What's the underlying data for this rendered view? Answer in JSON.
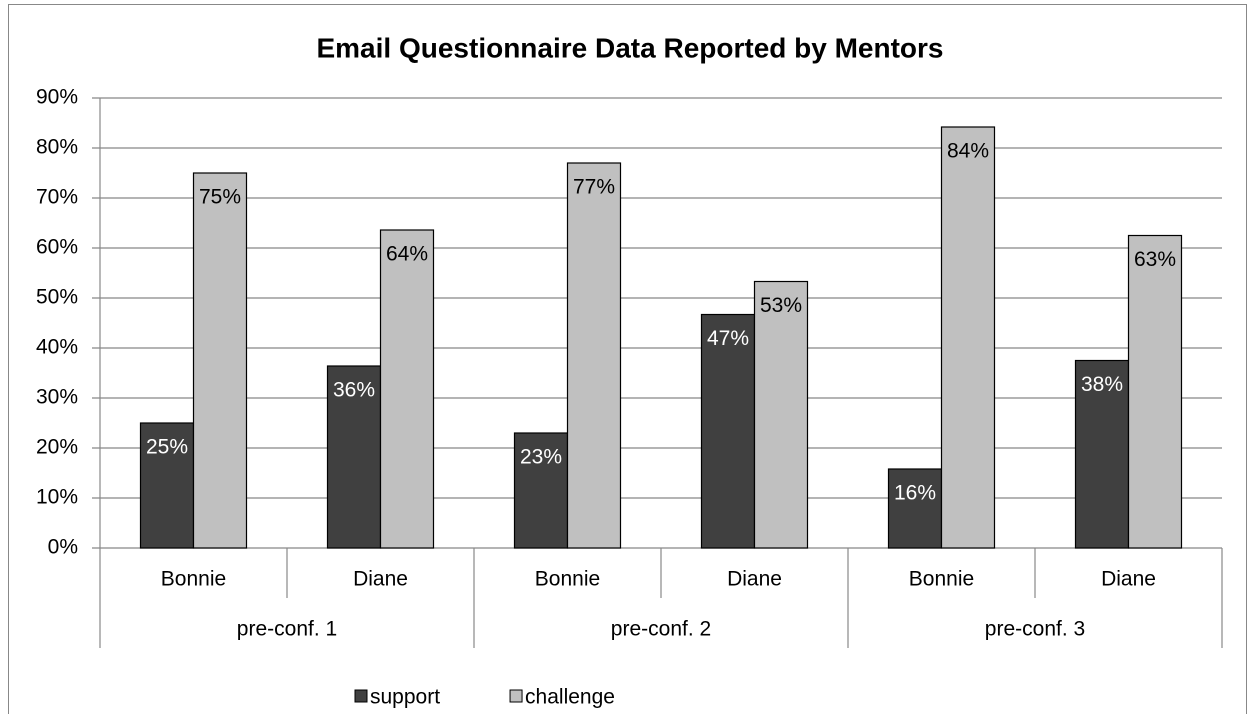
{
  "chart_data": {
    "type": "bar",
    "title": "Email Questionnaire Data Reported by Mentors",
    "categories": [
      "Bonnie",
      "Diane",
      "Bonnie",
      "Diane",
      "Bonnie",
      "Diane"
    ],
    "category_groups": [
      "pre-conf. 1",
      "pre-conf. 2",
      "pre-conf. 3"
    ],
    "series": [
      {
        "name": "support",
        "color": "#404040",
        "label_color": "#ffffff",
        "values": [
          25,
          36.4,
          23,
          46.7,
          15.8,
          37.5
        ],
        "value_labels": [
          "25%",
          "36%",
          "23%",
          "47%",
          "16%",
          "38%"
        ]
      },
      {
        "name": "challenge",
        "color": "#c0c0c0",
        "label_color": "#000000",
        "values": [
          75,
          63.6,
          77,
          53.3,
          84.2,
          62.5
        ],
        "value_labels": [
          "75%",
          "64%",
          "77%",
          "53%",
          "84%",
          "63%"
        ]
      }
    ],
    "ylim": [
      0,
      90
    ],
    "yticks": [
      {
        "value": 0,
        "label": "0%"
      },
      {
        "value": 10,
        "label": "10%"
      },
      {
        "value": 20,
        "label": "20%"
      },
      {
        "value": 30,
        "label": "30%"
      },
      {
        "value": 40,
        "label": "40%"
      },
      {
        "value": 50,
        "label": "50%"
      },
      {
        "value": 60,
        "label": "60%"
      },
      {
        "value": 70,
        "label": "70%"
      },
      {
        "value": 80,
        "label": "80%"
      },
      {
        "value": 90,
        "label": "90%"
      }
    ],
    "grid": true,
    "legend": "bottom"
  }
}
